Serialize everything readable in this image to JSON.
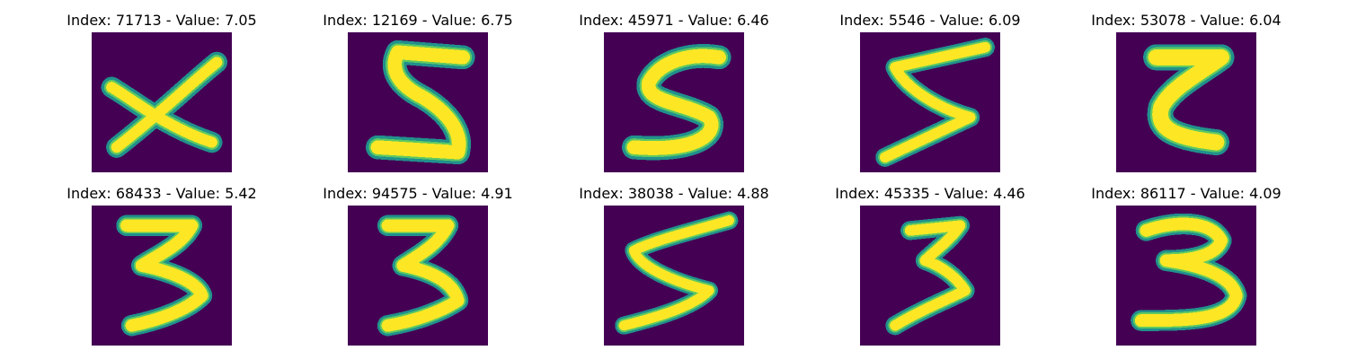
{
  "colors": {
    "background": "#440154",
    "stroke_edge": "#21918c",
    "stroke_mid": "#5ec962",
    "stroke_core": "#fde725",
    "title_text": "#000000"
  },
  "panels": [
    {
      "title": "Index: 71713 - Value: 7.05",
      "glyph": "x-shape"
    },
    {
      "title": "Index: 12169 - Value: 6.75",
      "glyph": "digit-5"
    },
    {
      "title": "Index: 45971 - Value: 6.46",
      "glyph": "digit-5"
    },
    {
      "title": "Index: 5546 - Value: 6.09",
      "glyph": "digit-5"
    },
    {
      "title": "Index: 53078 - Value: 6.04",
      "glyph": "digit-z"
    },
    {
      "title": "Index: 68433 - Value: 5.42",
      "glyph": "digit-3"
    },
    {
      "title": "Index: 94575 - Value: 4.91",
      "glyph": "digit-3"
    },
    {
      "title": "Index: 38038 - Value: 4.88",
      "glyph": "digit-5"
    },
    {
      "title": "Index: 45335 - Value: 4.46",
      "glyph": "digit-3"
    },
    {
      "title": "Index: 86117 - Value: 4.09",
      "glyph": "digit-3"
    }
  ]
}
